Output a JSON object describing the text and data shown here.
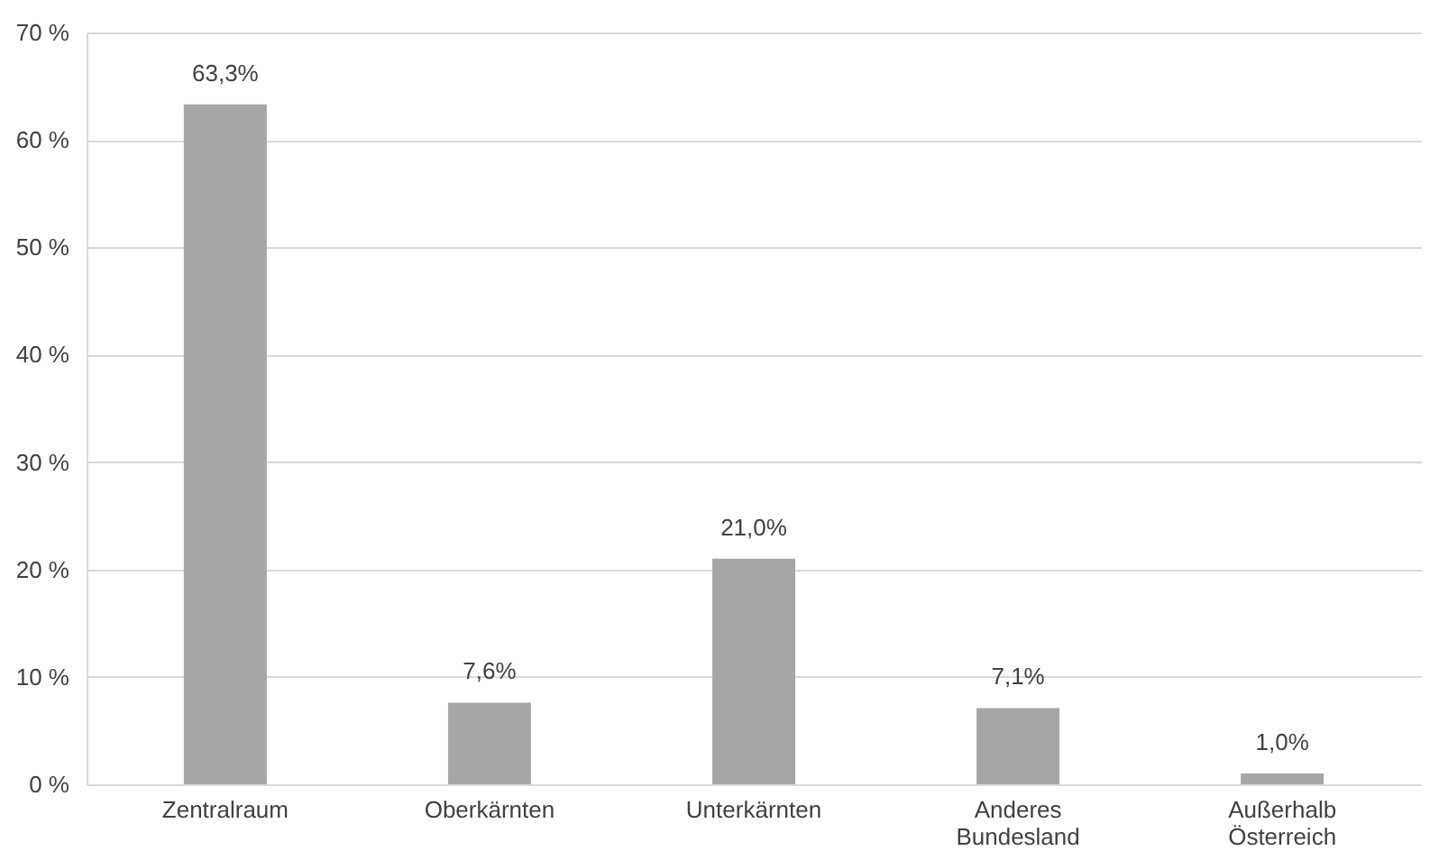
{
  "chart_data": {
    "type": "bar",
    "categories": [
      "Zentralraum",
      "Oberkärnten",
      "Unterkärnten",
      "Anderes Bundesland",
      "Außerhalb Österreich"
    ],
    "values": [
      63.3,
      7.6,
      21.0,
      7.1,
      1.0
    ],
    "value_labels": [
      "63,3%",
      "7,6%",
      "21,0%",
      "7,1%",
      "1,0%"
    ],
    "color": "#a6a6a6",
    "ylim": [
      0,
      70
    ],
    "yticks": [
      {
        "value": 0,
        "label": "0 %"
      },
      {
        "value": 10,
        "label": "10 %"
      },
      {
        "value": 20,
        "label": "20 %"
      },
      {
        "value": 30,
        "label": "30 %"
      },
      {
        "value": 40,
        "label": "40 %"
      },
      {
        "value": 50,
        "label": "50 %"
      },
      {
        "value": 60,
        "label": "60 %"
      },
      {
        "value": 70,
        "label": "70 %"
      }
    ],
    "grid": "y"
  }
}
